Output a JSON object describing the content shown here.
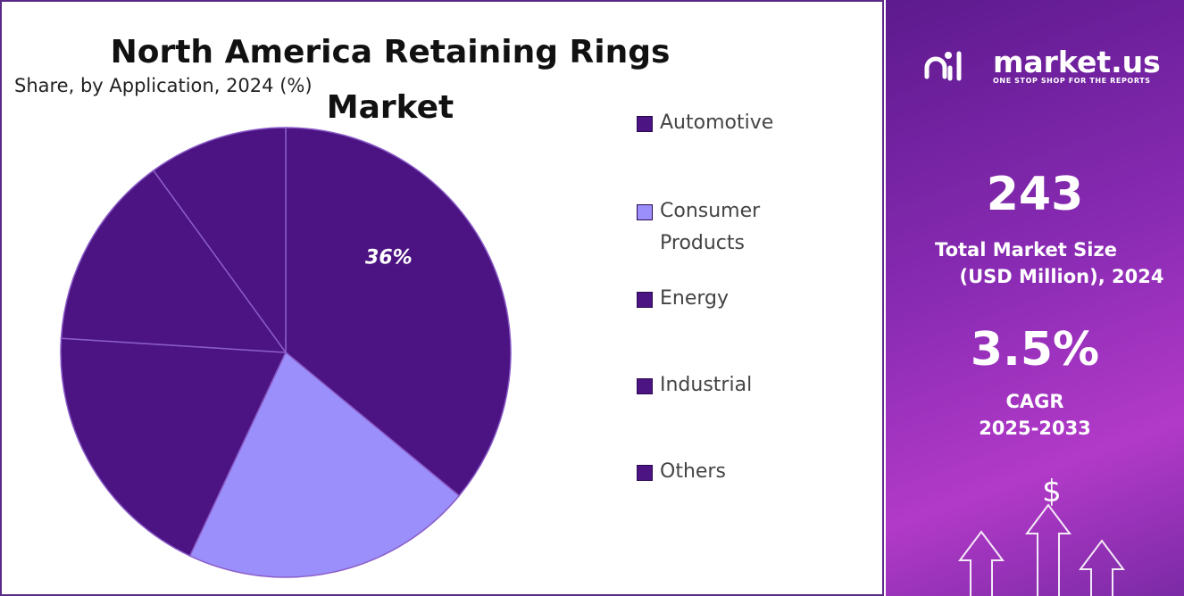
{
  "chart_data": {
    "type": "pie",
    "title": "North America Retaining Rings Market",
    "subtitle": "Share, by Application, 2024 (%)",
    "categories": [
      "Automotive",
      "Consumer Products",
      "Energy",
      "Industrial",
      "Others"
    ],
    "values": [
      36,
      21,
      19,
      14,
      10
    ],
    "value_labels": [
      "36%",
      null,
      null,
      null,
      null
    ],
    "colors": [
      "#4c1482",
      "#9b90fb",
      "#4c1482",
      "#4c1482",
      "#4c1482"
    ]
  },
  "side_panel": {
    "brand": "market.us",
    "tagline": "ONE STOP SHOP FOR THE REPORTS",
    "market_size": "243",
    "market_size_label_1": "Total Market Size",
    "market_size_label_2": "(USD Million), 2024",
    "cagr": "3.5%",
    "cagr_label_1": "CAGR",
    "cagr_label_2": "2025-2033"
  }
}
